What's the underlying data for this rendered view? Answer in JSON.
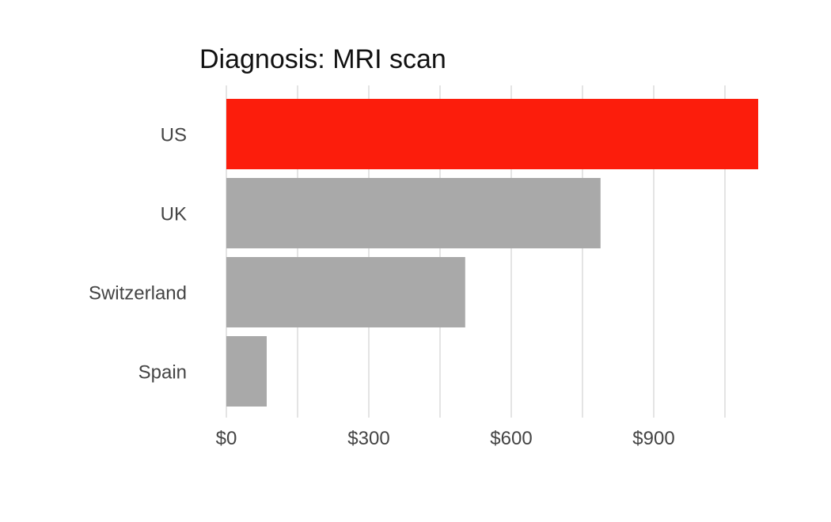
{
  "chart_data": {
    "type": "bar",
    "orientation": "horizontal",
    "title": "Diagnosis: MRI scan",
    "xlabel": "",
    "ylabel": "",
    "categories": [
      "US",
      "UK",
      "Switzerland",
      "Spain"
    ],
    "values": [
      1120,
      788,
      503,
      85
    ],
    "xlim": [
      0,
      1120
    ],
    "x_ticks": [
      0,
      300,
      600,
      900
    ],
    "x_tick_labels": [
      "$0",
      "$300",
      "$600",
      "$900"
    ],
    "minor_grid_ticks": [
      150,
      450,
      750,
      1050
    ],
    "grid": true,
    "legend": "none",
    "bar_colors": [
      "#fc1d0c",
      "#a9a9a9",
      "#a9a9a9",
      "#a9a9a9"
    ]
  }
}
